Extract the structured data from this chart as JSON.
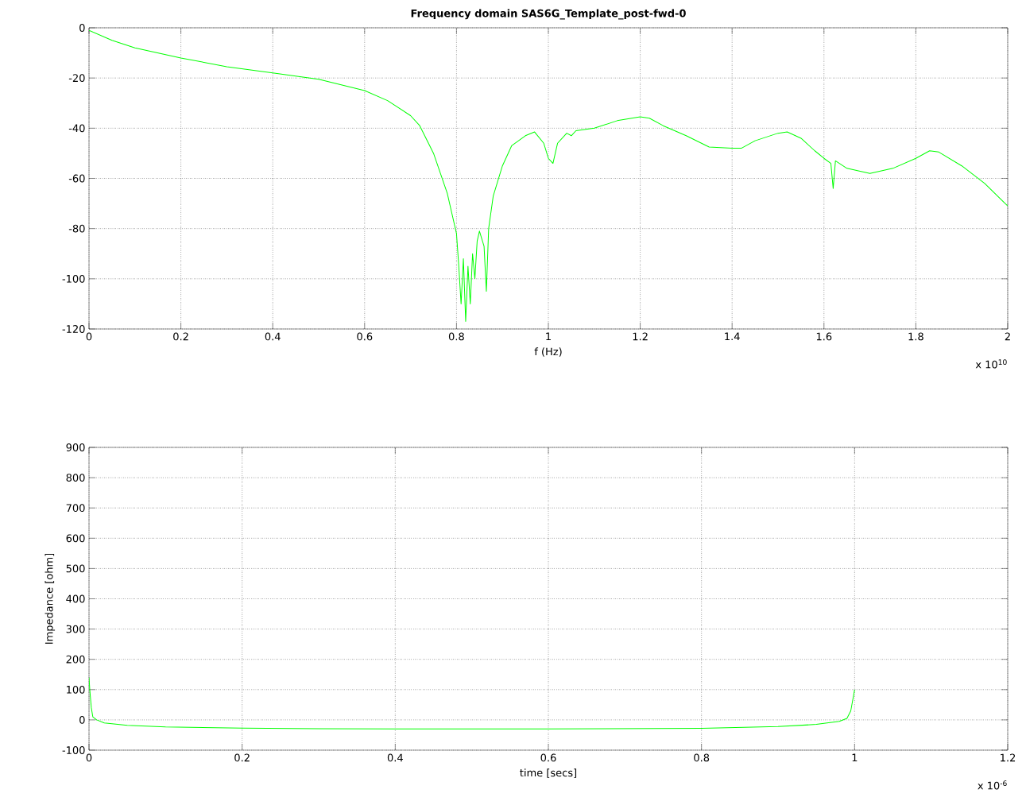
{
  "chart_data": [
    {
      "type": "line",
      "title": "Frequency domain SAS6G_Template_post-fwd-0",
      "xlabel": "f (Hz)",
      "annotations": [
        "x 10$^{10}$"
      ],
      "color": "#00ff00",
      "grid": true,
      "xlim": [
        0,
        2
      ],
      "ylim": [
        -120,
        0
      ],
      "xticks": [
        0,
        0.2,
        0.4,
        0.6,
        0.8,
        1,
        1.2,
        1.4,
        1.6,
        1.8,
        2
      ],
      "yticks": [
        -120,
        -100,
        -80,
        -60,
        -40,
        -20,
        0
      ],
      "x": [
        0,
        0.05,
        0.1,
        0.2,
        0.3,
        0.4,
        0.5,
        0.6,
        0.65,
        0.7,
        0.72,
        0.75,
        0.78,
        0.8,
        0.805,
        0.81,
        0.815,
        0.82,
        0.825,
        0.83,
        0.835,
        0.84,
        0.845,
        0.85,
        0.86,
        0.865,
        0.87,
        0.88,
        0.9,
        0.92,
        0.95,
        0.97,
        0.99,
        1.0,
        1.01,
        1.02,
        1.04,
        1.05,
        1.06,
        1.1,
        1.15,
        1.2,
        1.22,
        1.25,
        1.3,
        1.35,
        1.4,
        1.42,
        1.45,
        1.5,
        1.52,
        1.55,
        1.58,
        1.6,
        1.615,
        1.62,
        1.625,
        1.65,
        1.7,
        1.75,
        1.8,
        1.83,
        1.85,
        1.9,
        1.95,
        2.0
      ],
      "values": [
        -1,
        -5,
        -8,
        -12,
        -15.5,
        -18,
        -20.5,
        -25,
        -29,
        -35,
        -39,
        -50,
        -66,
        -82,
        -95,
        -110,
        -92,
        -117,
        -95,
        -110,
        -90,
        -100,
        -85,
        -81,
        -87,
        -105,
        -80,
        -67,
        -55,
        -47,
        -43,
        -41.5,
        -46,
        -52,
        -54,
        -46,
        -42,
        -43,
        -41,
        -40,
        -37,
        -35.5,
        -36,
        -39,
        -43,
        -47.5,
        -48,
        -48,
        -45,
        -42,
        -41.5,
        -44,
        -49,
        -52,
        -54,
        -64,
        -53,
        -56,
        -58,
        -56,
        -52,
        -49,
        -49.5,
        -55,
        -62,
        -71
      ]
    },
    {
      "type": "line",
      "xlabel": "time [secs]",
      "ylabel": "Impedance [ohm]",
      "annotations": [
        "x 10$^{-6}$"
      ],
      "color": "#00ff00",
      "grid": true,
      "xlim": [
        0,
        1.2
      ],
      "ylim": [
        -100,
        900
      ],
      "xticks": [
        0,
        0.2,
        0.4,
        0.6,
        0.8,
        1,
        1.2
      ],
      "yticks": [
        -100,
        0,
        100,
        200,
        300,
        400,
        500,
        600,
        700,
        800,
        900
      ],
      "x": [
        0,
        0.001,
        0.003,
        0.005,
        0.01,
        0.02,
        0.05,
        0.1,
        0.2,
        0.3,
        0.4,
        0.6,
        0.8,
        0.9,
        0.95,
        0.98,
        0.99,
        0.995,
        1.0
      ],
      "values": [
        140,
        100,
        40,
        10,
        0,
        -10,
        -18,
        -23,
        -27,
        -29,
        -30,
        -30,
        -28,
        -22,
        -15,
        -5,
        5,
        30,
        100
      ]
    }
  ]
}
